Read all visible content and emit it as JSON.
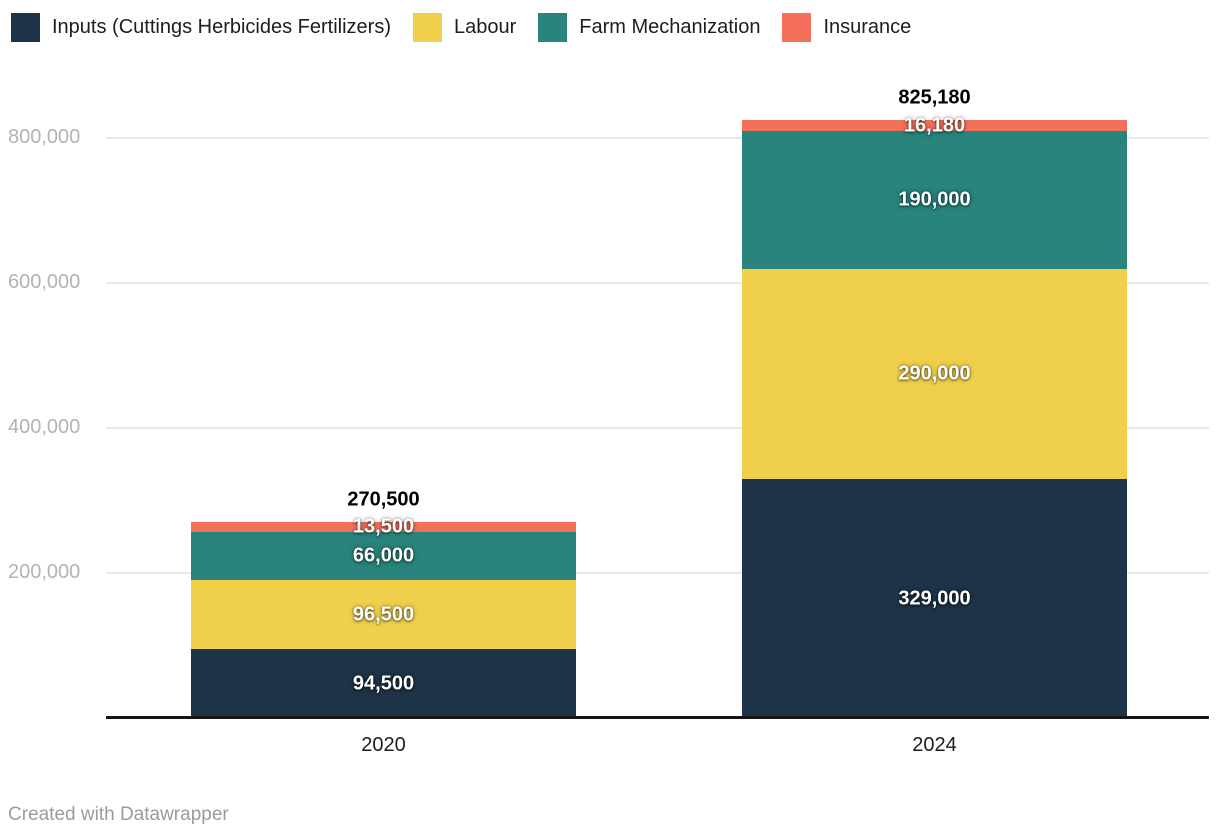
{
  "chart_data": {
    "type": "bar",
    "stacked": true,
    "title": "",
    "xlabel": "",
    "ylabel": "",
    "categories": [
      "2020",
      "2024"
    ],
    "series": [
      {
        "name": "Inputs (Cuttings Herbicides Fertilizers)",
        "color": "#1e3347",
        "values": [
          94500,
          329000
        ]
      },
      {
        "name": "Labour",
        "color": "#f0d04b",
        "values": [
          96500,
          290000
        ]
      },
      {
        "name": "Farm Mechanization",
        "color": "#28847c",
        "values": [
          66000,
          190000
        ]
      },
      {
        "name": "Insurance",
        "color": "#f4705a",
        "values": [
          13500,
          16180
        ]
      }
    ],
    "totals": [
      270500,
      825180
    ],
    "y_ticks": [
      200000,
      400000,
      600000,
      800000
    ],
    "ylim": [
      0,
      880000
    ],
    "grid": true,
    "legend_position": "top",
    "value_labels": "inside-segments",
    "total_labels": "above-bars"
  },
  "colors": {
    "background": "#ffffff",
    "grid": "#e8e8e8",
    "axis_line": "#141414",
    "tick_label": "#b3b3b3",
    "category_label": "#1d1d1d",
    "legend_label": "#1d1d1d",
    "credit_text": "#9b9b9b"
  },
  "footer": {
    "credit": "Created with Datawrapper"
  }
}
